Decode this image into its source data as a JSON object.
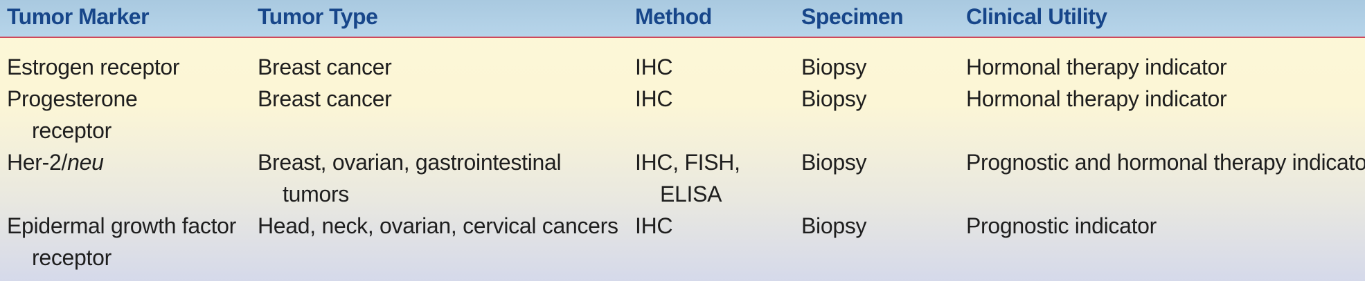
{
  "headers": [
    "Tumor Marker",
    "Tumor Type",
    "Method",
    "Specimen",
    "Clinical Utility"
  ],
  "rows": [
    {
      "marker": "Estrogen receptor",
      "type": "Breast cancer",
      "method": "IHC",
      "specimen": "Biopsy",
      "utility": "Hormonal therapy indicator"
    },
    {
      "marker": "Progesterone receptor",
      "type": "Breast cancer",
      "method": "IHC",
      "specimen": "Biopsy",
      "utility": "Hormonal therapy indicator"
    },
    {
      "marker_prefix": "Her-2/",
      "marker_italic": "neu",
      "type": "Breast, ovarian, gastrointestinal tumors",
      "method": "IHC, FISH, ELISA",
      "specimen": "Biopsy",
      "utility": "Prognostic and hormonal therapy indicator"
    },
    {
      "marker": "Epidermal growth factor receptor",
      "type": "Head, neck, ovarian, cervical cancers",
      "method": "IHC",
      "specimen": "Biopsy",
      "utility": "Prognostic indicator"
    }
  ],
  "colors": {
    "header_bg": "#b5d3e8",
    "header_text": "#17468a",
    "rule": "#d0485a"
  }
}
